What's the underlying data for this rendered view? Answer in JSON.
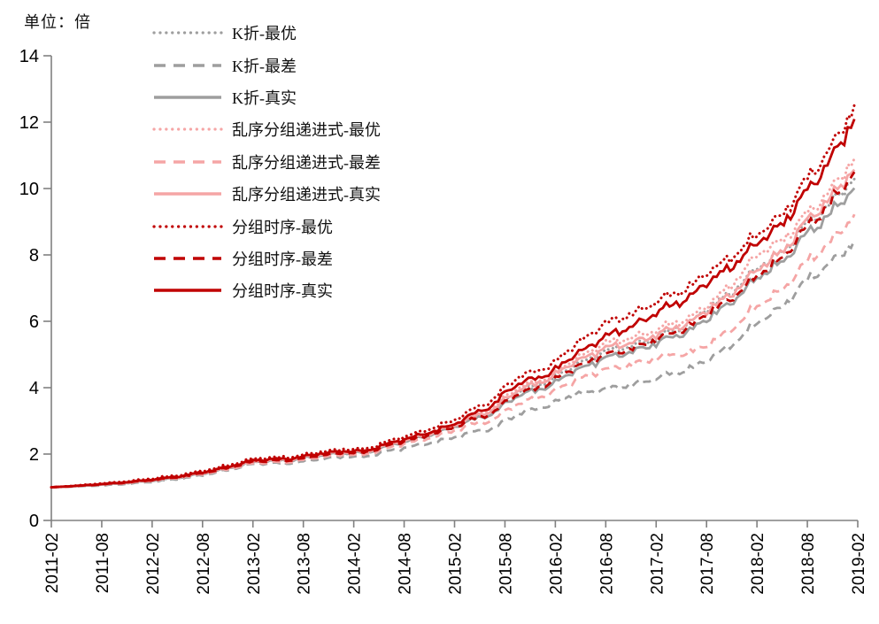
{
  "unit_label": "单位：倍",
  "chart_data": {
    "type": "line",
    "title": "",
    "unit": "单位：倍",
    "xlabel": "",
    "ylabel": "",
    "ylim": [
      0,
      14
    ],
    "y_ticks": [
      0,
      2,
      4,
      6,
      8,
      10,
      12,
      14
    ],
    "grid": false,
    "legend_position": "top-left",
    "x_tick_labels": [
      "2011-02",
      "2011-08",
      "2012-02",
      "2012-08",
      "2013-02",
      "2013-08",
      "2014-02",
      "2014-08",
      "2015-02",
      "2015-08",
      "2016-02",
      "2016-08",
      "2017-02",
      "2017-08",
      "2018-02",
      "2018-08",
      "2019-02"
    ],
    "axis_color": "#808080",
    "label_color": "#000000",
    "series": [
      {
        "name": "K折-最优",
        "style": "dotted",
        "color": "#9E9E9E",
        "values": [
          1.0,
          1.09,
          1.21,
          1.44,
          1.78,
          1.93,
          2.08,
          2.4,
          2.88,
          3.7,
          4.45,
          5.1,
          5.5,
          6.4,
          7.6,
          9.0,
          10.45
        ]
      },
      {
        "name": "K折-最差",
        "style": "dashed",
        "color": "#9E9E9E",
        "values": [
          1.0,
          1.06,
          1.16,
          1.37,
          1.7,
          1.82,
          1.95,
          2.18,
          2.52,
          3.05,
          3.7,
          3.95,
          4.3,
          4.85,
          5.95,
          7.3,
          8.5
        ]
      },
      {
        "name": "K折-真实",
        "style": "solid",
        "color": "#9E9E9E",
        "values": [
          1.0,
          1.08,
          1.2,
          1.42,
          1.76,
          1.91,
          2.06,
          2.36,
          2.83,
          3.58,
          4.3,
          4.9,
          5.35,
          6.1,
          7.3,
          8.7,
          10.15
        ]
      },
      {
        "name": "乱序分组递进式-最优",
        "style": "dotted",
        "color": "#F5A5A5",
        "values": [
          1.0,
          1.1,
          1.23,
          1.46,
          1.8,
          1.96,
          2.11,
          2.43,
          2.93,
          3.8,
          4.6,
          5.35,
          5.75,
          6.5,
          8.0,
          9.3,
          11.05
        ]
      },
      {
        "name": "乱序分组递进式-最差",
        "style": "dashed",
        "color": "#F5A5A5",
        "values": [
          1.0,
          1.08,
          1.19,
          1.4,
          1.72,
          1.87,
          2.01,
          2.3,
          2.72,
          3.35,
          4.05,
          4.55,
          4.9,
          5.3,
          6.45,
          7.85,
          9.3
        ]
      },
      {
        "name": "乱序分组递进式-真实",
        "style": "solid",
        "color": "#F5A5A5",
        "values": [
          1.0,
          1.09,
          1.22,
          1.44,
          1.78,
          1.94,
          2.09,
          2.4,
          2.87,
          3.72,
          4.55,
          5.2,
          5.6,
          6.35,
          7.55,
          9.1,
          10.75
        ]
      },
      {
        "name": "分组时序-最优",
        "style": "dotted",
        "color": "#C00000",
        "values": [
          1.0,
          1.12,
          1.26,
          1.5,
          1.86,
          2.02,
          2.18,
          2.52,
          3.05,
          4.1,
          4.95,
          5.95,
          6.6,
          7.5,
          8.6,
          10.35,
          12.65
        ]
      },
      {
        "name": "分组时序-最差",
        "style": "dashed",
        "color": "#C00000",
        "values": [
          1.0,
          1.09,
          1.21,
          1.43,
          1.77,
          1.92,
          2.07,
          2.38,
          2.83,
          3.62,
          4.4,
          5.0,
          5.45,
          6.25,
          7.36,
          8.9,
          10.65
        ]
      },
      {
        "name": "分组时序-真实",
        "style": "solid",
        "color": "#C00000",
        "values": [
          1.0,
          1.1,
          1.23,
          1.46,
          1.81,
          1.97,
          2.12,
          2.44,
          2.92,
          3.92,
          4.7,
          5.55,
          6.27,
          7.2,
          8.35,
          10.0,
          12.3
        ]
      }
    ]
  }
}
